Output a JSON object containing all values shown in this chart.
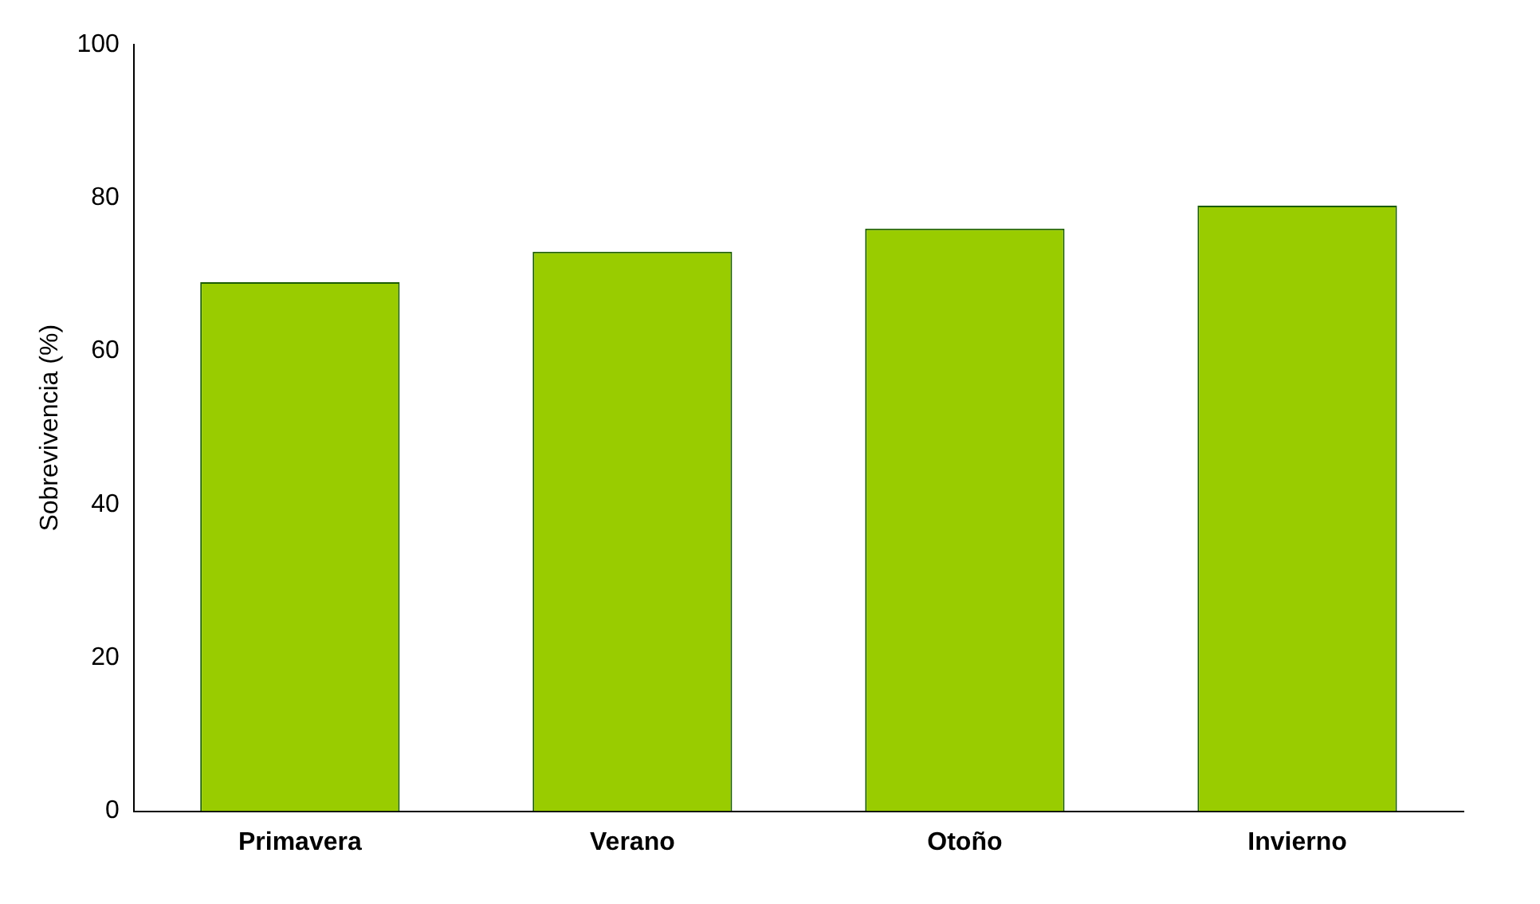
{
  "chart_data": {
    "type": "bar",
    "ylabel": "Sobrevivencia (%)",
    "categories": [
      "Primavera",
      "Verano",
      "Otoño",
      "Invierno"
    ],
    "values": [
      69,
      73,
      76,
      79
    ],
    "color": "#99cc00",
    "ylim": [
      0,
      100
    ],
    "yticks": [
      0,
      20,
      40,
      60,
      80,
      100
    ],
    "grid": false,
    "legend": false
  }
}
